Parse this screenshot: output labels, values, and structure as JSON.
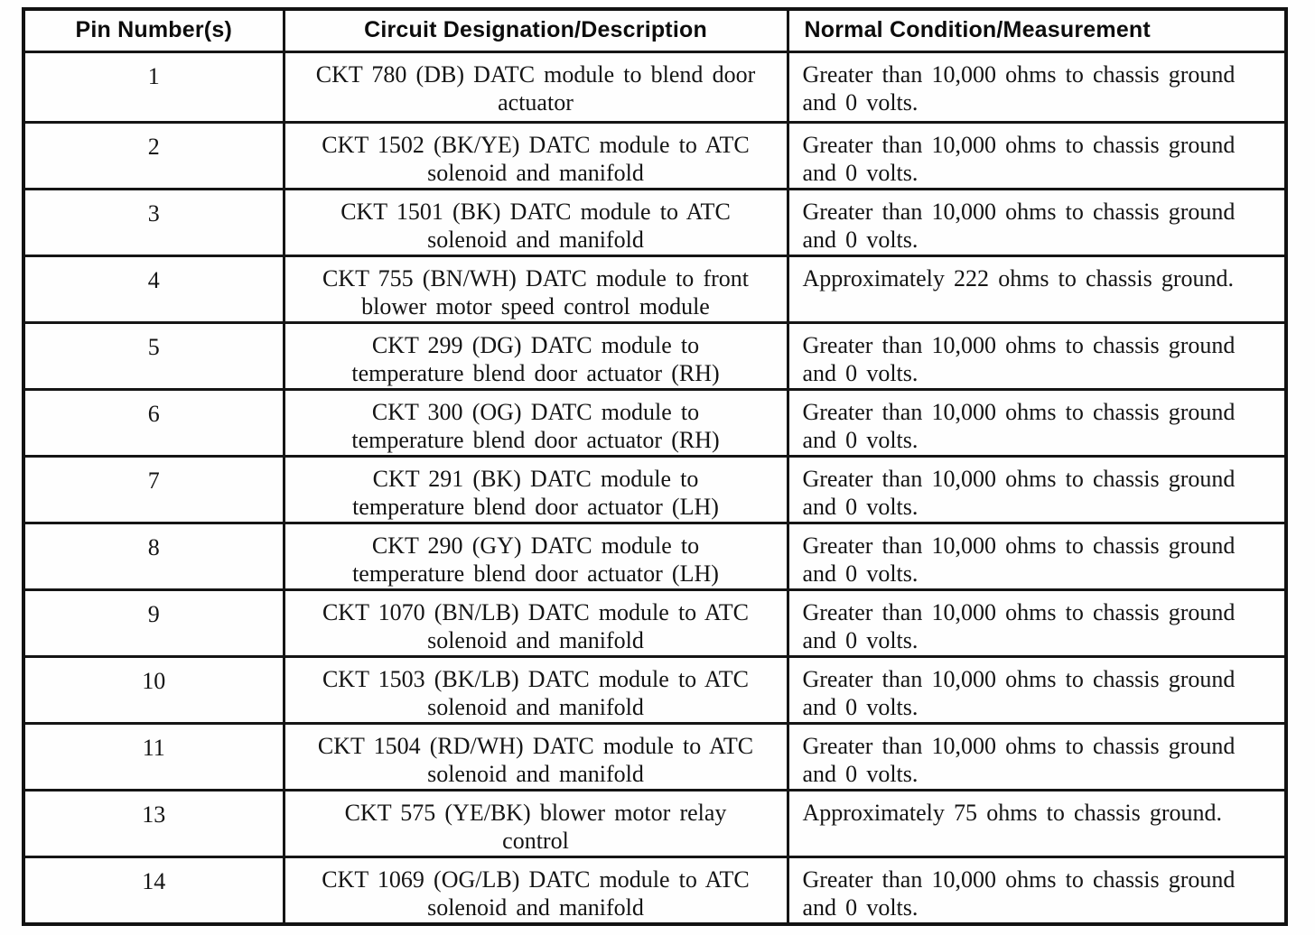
{
  "table": {
    "columns": [
      {
        "label": "Pin Number(s)"
      },
      {
        "label": "Circuit Designation/Description"
      },
      {
        "label": "Normal Condition/Measurement"
      }
    ],
    "rows": [
      {
        "pin": "1",
        "circuit": "CKT 780 (DB) DATC module to blend door\nactuator",
        "condition": "Greater than 10,000 ohms to chassis ground\nand 0 volts."
      },
      {
        "pin": "2",
        "circuit": "CKT 1502 (BK/YE) DATC module to ATC\nsolenoid and manifold",
        "condition": "Greater than 10,000 ohms to chassis ground\nand 0 volts."
      },
      {
        "pin": "3",
        "circuit": "CKT 1501 (BK) DATC module to ATC\nsolenoid and manifold",
        "condition": "Greater than 10,000 ohms to chassis ground\nand 0 volts."
      },
      {
        "pin": "4",
        "circuit": "CKT 755 (BN/WH) DATC module to front\nblower motor speed control module",
        "condition": "Approximately 222 ohms to chassis ground."
      },
      {
        "pin": "5",
        "circuit": "CKT 299 (DG) DATC module to\ntemperature blend door actuator (RH)",
        "condition": "Greater than 10,000 ohms to chassis ground\nand 0 volts."
      },
      {
        "pin": "6",
        "circuit": "CKT 300 (OG) DATC module to\ntemperature blend door actuator (RH)",
        "condition": "Greater than 10,000 ohms to chassis ground\nand 0 volts."
      },
      {
        "pin": "7",
        "circuit": "CKT 291 (BK) DATC module to\ntemperature blend door actuator (LH)",
        "condition": "Greater than 10,000 ohms to chassis ground\nand 0 volts."
      },
      {
        "pin": "8",
        "circuit": "CKT 290 (GY) DATC module to\ntemperature blend door actuator (LH)",
        "condition": "Greater than 10,000 ohms to chassis ground\nand 0 volts."
      },
      {
        "pin": "9",
        "circuit": "CKT 1070 (BN/LB) DATC module to ATC\nsolenoid and manifold",
        "condition": "Greater than 10,000 ohms to chassis ground\nand 0 volts."
      },
      {
        "pin": "10",
        "circuit": "CKT 1503 (BK/LB) DATC module to ATC\nsolenoid and manifold",
        "condition": "Greater than 10,000 ohms to chassis ground\nand 0 volts."
      },
      {
        "pin": "11",
        "circuit": "CKT 1504 (RD/WH) DATC module to ATC\nsolenoid and manifold",
        "condition": "Greater than 10,000 ohms to chassis ground\nand 0 volts."
      },
      {
        "pin": "13",
        "circuit": "CKT 575 (YE/BK) blower motor relay\ncontrol",
        "condition": "Approximately 75 ohms to chassis ground."
      },
      {
        "pin": "14",
        "circuit": "CKT 1069 (OG/LB) DATC module to ATC\nsolenoid and manifold",
        "condition": "Greater than 10,000 ohms to chassis ground\nand 0 volts."
      }
    ]
  }
}
